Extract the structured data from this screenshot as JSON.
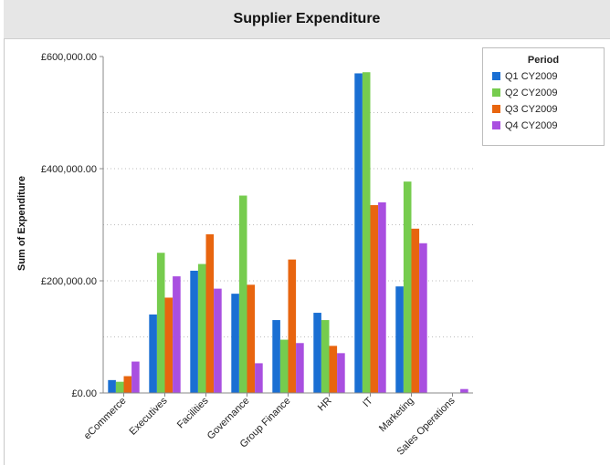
{
  "chart_data": {
    "type": "bar",
    "title": "Supplier Expenditure",
    "ylabel": "Sum of Expenditure",
    "xlabel": "",
    "ylim": [
      0,
      600000
    ],
    "yticks": [
      {
        "value": 0,
        "label": "£0.00"
      },
      {
        "value": 200000,
        "label": "£200,000.00"
      },
      {
        "value": 400000,
        "label": "£400,000.00"
      },
      {
        "value": 600000,
        "label": "£600,000.00"
      }
    ],
    "grid_lines": [
      100000,
      200000,
      300000,
      400000,
      500000
    ],
    "categories": [
      "eCommerce",
      "Executives",
      "Facilities",
      "Governance",
      "Group Finance",
      "HR",
      "IT",
      "Marketing",
      "Sales Operations"
    ],
    "legend": {
      "title": "Period",
      "position": "top-right"
    },
    "series": [
      {
        "name": "Q1 CY2009",
        "color": "#1a6fd3",
        "values": [
          23000,
          140000,
          218000,
          177000,
          130000,
          143000,
          570000,
          190000,
          0
        ]
      },
      {
        "name": "Q2 CY2009",
        "color": "#76cc4e",
        "values": [
          20000,
          250000,
          230000,
          352000,
          95000,
          130000,
          572000,
          377000,
          0
        ]
      },
      {
        "name": "Q3 CY2009",
        "color": "#e8650f",
        "values": [
          30000,
          170000,
          283000,
          193000,
          238000,
          84000,
          335000,
          293000,
          0
        ]
      },
      {
        "name": "Q4 CY2009",
        "color": "#a94fe0",
        "values": [
          56000,
          208000,
          186000,
          53000,
          89000,
          71000,
          340000,
          267000,
          7000
        ]
      }
    ]
  }
}
